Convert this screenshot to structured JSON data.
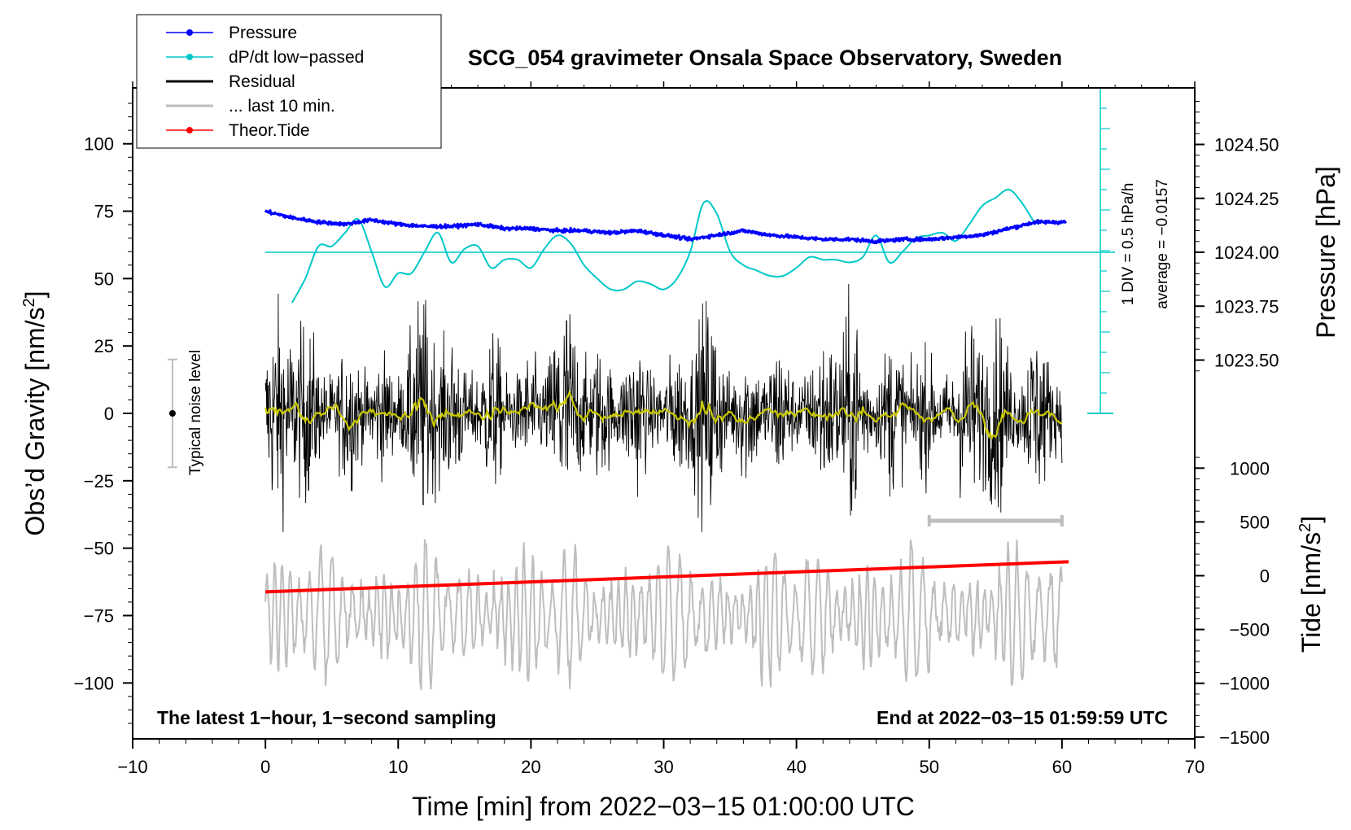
{
  "chart_data": {
    "type": "line",
    "title": "SCG_054 gravimeter Onsala Space Observatory, Sweden",
    "xlabel": "Time [min] from 2022−03−15 01:00:00 UTC",
    "ylabel_left_main": "Obs’d Gravity [nm/s",
    "ylabel_left_sup": "2",
    "ylabel_left_end": "]",
    "ylabel_right_pressure": "Pressure [hPa]",
    "ylabel_right_tide_main": "Tide [nm/s",
    "ylabel_right_tide_sup": "2",
    "ylabel_right_tide_end": "]",
    "xlim": [
      -10,
      70
    ],
    "ylim": [
      -120,
      120
    ],
    "x_ticks": [
      "−10",
      "0",
      "10",
      "20",
      "30",
      "40",
      "50",
      "60",
      "70"
    ],
    "y_ticks": [
      {
        "v": 100,
        "label": "100"
      },
      {
        "v": 75,
        "label": "75"
      },
      {
        "v": 50,
        "label": "50"
      },
      {
        "v": 25,
        "label": "25"
      },
      {
        "v": 0,
        "label": "0"
      },
      {
        "v": -25,
        "label": "−25"
      },
      {
        "v": -50,
        "label": "−50"
      },
      {
        "v": -75,
        "label": "−75"
      },
      {
        "v": -100,
        "label": "−100"
      }
    ],
    "pressure_ticks": [
      {
        "v": 1024.5,
        "label": "1024.50"
      },
      {
        "v": 1024.25,
        "label": "1024.25"
      },
      {
        "v": 1024.0,
        "label": "1024.00"
      },
      {
        "v": 1023.75,
        "label": "1023.75"
      },
      {
        "v": 1023.5,
        "label": "1023.50"
      }
    ],
    "tide_ticks": [
      {
        "v": 1000,
        "label": "1000"
      },
      {
        "v": 500,
        "label": "500"
      },
      {
        "v": 0,
        "label": "0"
      },
      {
        "v": -500,
        "label": "−500"
      },
      {
        "v": -1000,
        "label": "−1000"
      },
      {
        "v": -1500,
        "label": "−1500"
      }
    ],
    "legend": [
      {
        "label": "Pressure",
        "color": "#0000ff",
        "marker": true
      },
      {
        "label": "dP/dt low−passed",
        "color": "#00c8c8",
        "marker": true
      },
      {
        "label": "Residual",
        "color": "#000000",
        "marker": false
      },
      {
        "label": "... last 10 min.",
        "color": "#bebebe",
        "marker": false
      },
      {
        "label": "Theor.Tide",
        "color": "#ff0000",
        "marker": true
      }
    ],
    "scale_bar": {
      "label": "1 DIV = 0.5 hPa/h",
      "average_label": "average = −0.0157"
    },
    "noise_bar": {
      "label": "Typical noise level",
      "range": [
        -20,
        20
      ],
      "x": -7
    },
    "annotation_left": "The latest 1−hour, 1−second sampling",
    "annotation_right": "End at 2022−03−15 01:59:59 UTC",
    "series": [
      {
        "name": "Pressure",
        "axis": "pressure_hPa",
        "color": "#0000ff",
        "x": [
          0,
          2,
          4,
          6,
          8,
          10,
          12,
          14,
          16,
          18,
          20,
          22,
          24,
          26,
          28,
          30,
          32,
          34,
          36,
          38,
          40,
          42,
          44,
          46,
          48,
          50,
          52,
          54,
          56,
          58,
          60
        ],
        "values": [
          1024.19,
          1024.16,
          1024.14,
          1024.13,
          1024.15,
          1024.13,
          1024.12,
          1024.12,
          1024.13,
          1024.11,
          1024.11,
          1024.1,
          1024.1,
          1024.09,
          1024.1,
          1024.08,
          1024.06,
          1024.08,
          1024.1,
          1024.08,
          1024.07,
          1024.06,
          1024.06,
          1024.05,
          1024.06,
          1024.06,
          1024.07,
          1024.08,
          1024.11,
          1024.14,
          1024.14
        ]
      },
      {
        "name": "dP/dt low−passed",
        "axis": "gravity_nm_s2",
        "color": "#00c8c8",
        "x": [
          2,
          3,
          4,
          5,
          6,
          7,
          8,
          9,
          10,
          11,
          12,
          13,
          14,
          15,
          16,
          17,
          18,
          19,
          20,
          21,
          22,
          23,
          24,
          25,
          26,
          27,
          28,
          29,
          30,
          31,
          32,
          33,
          34,
          35,
          36,
          37,
          38,
          39,
          40,
          41,
          42,
          43,
          44,
          45,
          46,
          47,
          48,
          49,
          50,
          51,
          52,
          53,
          54,
          55,
          56,
          57,
          58
        ],
        "values": [
          41,
          50,
          62,
          62,
          67,
          72,
          60,
          47,
          52,
          52,
          60,
          67,
          56,
          61,
          62,
          54,
          57,
          57,
          54,
          61,
          66,
          63,
          55,
          50,
          46,
          46,
          49,
          48,
          46,
          50,
          60,
          78,
          74,
          60,
          55,
          53,
          51,
          51,
          54,
          58,
          57,
          57,
          56,
          58,
          66,
          56,
          60,
          65,
          66,
          67,
          64,
          70,
          77,
          80,
          83,
          78,
          70
        ]
      },
      {
        "name": "Residual",
        "axis": "gravity_nm_s2",
        "color": "#000000",
        "x_range": [
          0,
          60
        ],
        "amplitude_range": [
          -44,
          48
        ]
      },
      {
        "name": "... last 10 min.",
        "axis": "gravity_nm_s2",
        "color": "#bebebe",
        "x_range": [
          50,
          60
        ],
        "amplitude_range": [
          -114,
          -37
        ]
      },
      {
        "name": "Theor.Tide",
        "axis": "tide_nm_s2",
        "color": "#ff0000",
        "x": [
          0,
          60.5
        ],
        "values": [
          -150,
          130
        ]
      }
    ]
  }
}
